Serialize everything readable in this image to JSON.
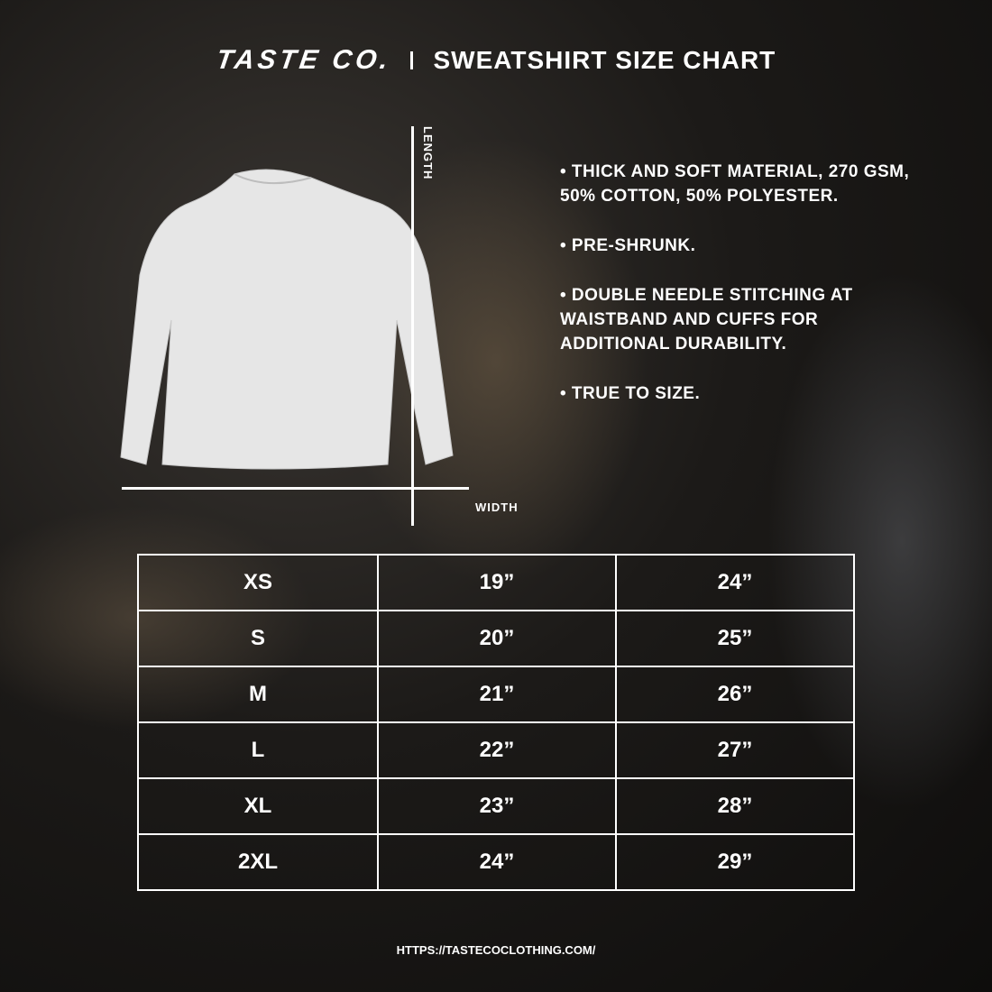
{
  "header": {
    "brand": "TASTE CO.",
    "title": "SWEATSHIRT SIZE CHART"
  },
  "diagram": {
    "length_label": "LENGTH",
    "width_label": "WIDTH"
  },
  "features": [
    "• THICK AND SOFT MATERIAL, 270 GSM, 50% COTTON, 50% POLYESTER.",
    "• PRE-SHRUNK.",
    "• DOUBLE NEEDLE STITCHING AT WAISTBAND AND CUFFS FOR ADDITIONAL DURABILITY.",
    "• TRUE TO SIZE."
  ],
  "size_table": {
    "rows": [
      [
        "XS",
        "19”",
        "24”"
      ],
      [
        "S",
        "20”",
        "25”"
      ],
      [
        "M",
        "21”",
        "26”"
      ],
      [
        "L",
        "22”",
        "27”"
      ],
      [
        "XL",
        "23”",
        "28”"
      ],
      [
        "2XL",
        "24”",
        "29”"
      ]
    ]
  },
  "footer": {
    "url": "HTTPS://TASTECOCLOTHING.COM/"
  }
}
